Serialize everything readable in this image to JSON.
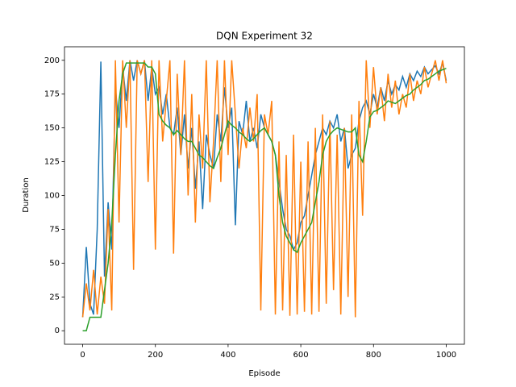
{
  "chart_data": {
    "type": "line",
    "title": "DQN Experiment 32",
    "x_label": "Episode",
    "y_label": "Duration",
    "x": [
      0,
      10,
      20,
      30,
      40,
      50,
      60,
      70,
      80,
      90,
      100,
      110,
      120,
      130,
      140,
      150,
      160,
      170,
      180,
      190,
      200,
      210,
      220,
      230,
      240,
      250,
      260,
      270,
      280,
      290,
      300,
      310,
      320,
      330,
      340,
      350,
      360,
      370,
      380,
      390,
      400,
      410,
      420,
      430,
      440,
      450,
      460,
      470,
      480,
      490,
      500,
      510,
      520,
      530,
      540,
      550,
      560,
      570,
      580,
      590,
      600,
      610,
      620,
      630,
      640,
      650,
      660,
      670,
      680,
      690,
      700,
      710,
      720,
      730,
      740,
      750,
      760,
      770,
      780,
      790,
      800,
      810,
      820,
      830,
      840,
      850,
      860,
      870,
      880,
      890,
      900,
      910,
      920,
      930,
      940,
      950,
      960,
      970,
      980,
      990,
      1000
    ],
    "series": [
      {
        "color": "#1f77b4",
        "values": [
          10,
          62,
          20,
          12,
          75,
          199,
          40,
          95,
          60,
          180,
          150,
          195,
          170,
          200,
          185,
          200,
          190,
          200,
          170,
          195,
          175,
          180,
          160,
          175,
          150,
          145,
          165,
          130,
          160,
          120,
          150,
          105,
          140,
          90,
          145,
          130,
          120,
          160,
          140,
          180,
          150,
          165,
          78,
          155,
          145,
          170,
          140,
          150,
          135,
          160,
          150,
          145,
          140,
          130,
          110,
          90,
          75,
          70,
          60,
          65,
          80,
          85,
          100,
          115,
          130,
          140,
          150,
          145,
          155,
          150,
          160,
          140,
          150,
          120,
          130,
          135,
          155,
          165,
          170,
          160,
          175,
          165,
          180,
          170,
          185,
          175,
          182,
          178,
          188,
          180,
          190,
          185,
          192,
          188,
          195,
          190,
          193,
          196,
          190,
          198,
          185
        ]
      },
      {
        "color": "#ff7f0e",
        "values": [
          10,
          35,
          15,
          45,
          12,
          40,
          20,
          90,
          15,
          200,
          80,
          200,
          150,
          200,
          45,
          200,
          190,
          200,
          110,
          200,
          60,
          200,
          140,
          170,
          200,
          57,
          190,
          130,
          200,
          100,
          175,
          80,
          160,
          120,
          200,
          95,
          140,
          200,
          110,
          200,
          130,
          200,
          160,
          120,
          150,
          135,
          165,
          140,
          175,
          15,
          160,
          145,
          170,
          12,
          140,
          15,
          130,
          11,
          145,
          12,
          125,
          14,
          140,
          12,
          150,
          14,
          160,
          20,
          155,
          30,
          145,
          12,
          150,
          25,
          160,
          10,
          170,
          85,
          200,
          150,
          195,
          160,
          180,
          155,
          190,
          165,
          185,
          160,
          175,
          165,
          190,
          170,
          185,
          175,
          195,
          180,
          190,
          200,
          185,
          200,
          183
        ]
      },
      {
        "color": "#2ca02c",
        "values": [
          0,
          0,
          10,
          10,
          10,
          10,
          30,
          50,
          80,
          130,
          170,
          190,
          198,
          198,
          198,
          198,
          198,
          198,
          195,
          195,
          190,
          160,
          155,
          152,
          150,
          145,
          148,
          145,
          142,
          140,
          140,
          135,
          130,
          128,
          125,
          122,
          120,
          128,
          135,
          145,
          155,
          152,
          150,
          147,
          145,
          142,
          140,
          142,
          145,
          148,
          150,
          145,
          140,
          130,
          100,
          80,
          70,
          65,
          60,
          58,
          65,
          70,
          75,
          80,
          95,
          110,
          130,
          140,
          145,
          148,
          150,
          149,
          148,
          147,
          147,
          150,
          130,
          125,
          140,
          158,
          162,
          163,
          165,
          167,
          170,
          169,
          168,
          170,
          172,
          174,
          175,
          178,
          180,
          182,
          185,
          186,
          188,
          190,
          192,
          193,
          194
        ]
      }
    ],
    "xlim": [
      -50,
      1050
    ],
    "ylim": [
      -10,
      210
    ],
    "xticks": [
      0,
      200,
      400,
      600,
      800,
      1000
    ],
    "yticks": [
      0,
      25,
      50,
      75,
      100,
      125,
      150,
      175,
      200
    ]
  }
}
